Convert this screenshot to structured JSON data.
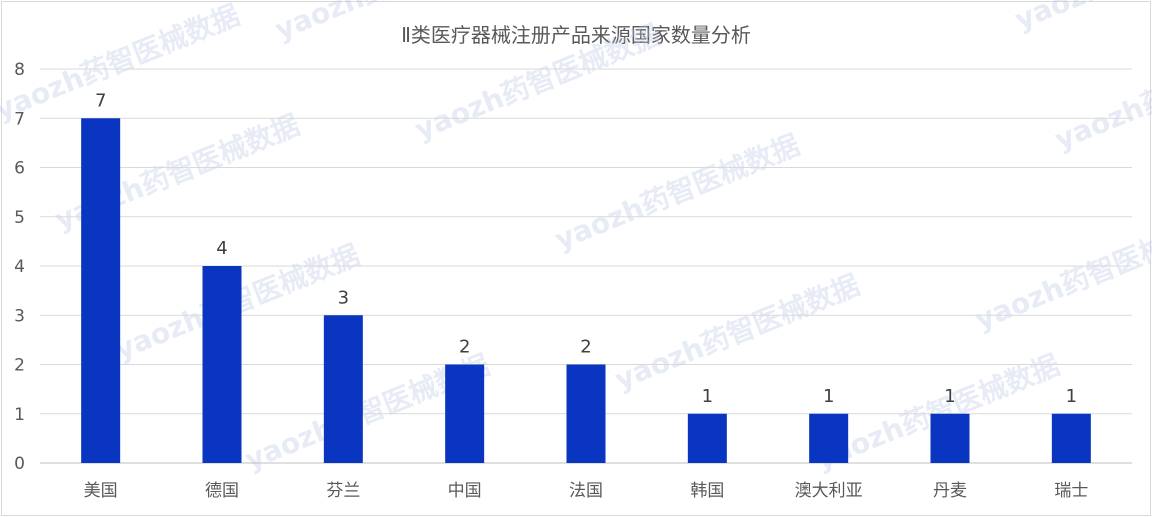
{
  "chart_data": {
    "type": "bar",
    "title": "Ⅱ类医疗器械注册产品来源国家数量分析",
    "categories": [
      "美国",
      "德国",
      "芬兰",
      "中国",
      "法国",
      "韩国",
      "澳大利亚",
      "丹麦",
      "瑞士"
    ],
    "values": [
      7,
      4,
      3,
      2,
      2,
      1,
      1,
      1,
      1
    ],
    "ylim": [
      0,
      8
    ],
    "yticks": [
      0,
      1,
      2,
      3,
      4,
      5,
      6,
      7,
      8
    ],
    "grid": true,
    "legend": "none",
    "data_labels": true,
    "colors": {
      "bar": "#0a35c0",
      "grid": "#d9d9d9",
      "text": "#595959"
    }
  },
  "watermark": "yaozh药智医械数据"
}
